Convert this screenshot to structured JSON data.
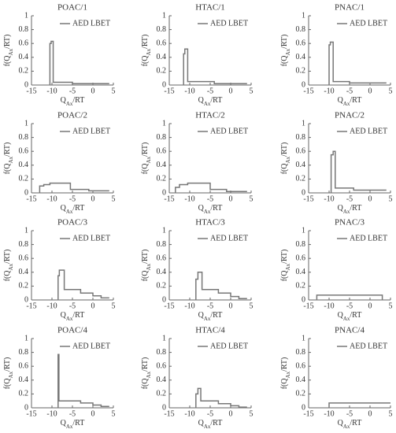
{
  "chart_data": [
    {
      "type": "line",
      "title": "POAC/1",
      "xlabel": {
        "pre": "Q",
        "sub": "Ax",
        "post": "/RT"
      },
      "ylabel": {
        "pre": "f(Q",
        "sub": "Ax",
        "post": "/RT)"
      },
      "x": [
        -10.5,
        -10.5,
        -10.2,
        -10.2,
        -9.7,
        -9.7,
        -5,
        -5,
        4
      ],
      "series": [
        {
          "name": "AED LBET",
          "color": "#777777",
          "values": [
            0,
            0.6,
            0.6,
            0.63,
            0.63,
            0.04,
            0.04,
            0.02,
            0.02
          ]
        }
      ],
      "xlim": [
        -15,
        5
      ],
      "ylim": [
        0,
        1
      ],
      "xticks": [
        -15,
        -10,
        -5,
        0,
        5
      ],
      "yticks": [
        0,
        0.2,
        0.4,
        0.6,
        0.8,
        1
      ],
      "legend": "upper right"
    },
    {
      "type": "line",
      "title": "HTAC/1",
      "xlabel": {
        "pre": "Q",
        "sub": "Ax",
        "post": "/RT"
      },
      "ylabel": {
        "pre": "f(Q",
        "sub": "Ax",
        "post": "/RT)"
      },
      "x": [
        -11.5,
        -11.5,
        -11.2,
        -11.2,
        -10.5,
        -10.5,
        -4,
        -4,
        4
      ],
      "series": [
        {
          "name": "AED LBET",
          "color": "#777777",
          "values": [
            0,
            0.45,
            0.45,
            0.52,
            0.52,
            0.05,
            0.05,
            0.02,
            0.02
          ]
        }
      ],
      "xlim": [
        -15,
        5
      ],
      "ylim": [
        0,
        1
      ],
      "xticks": [
        -15,
        -10,
        -5,
        0,
        5
      ],
      "yticks": [
        0,
        0.2,
        0.4,
        0.6,
        0.8,
        1
      ],
      "legend": "upper right"
    },
    {
      "type": "line",
      "title": "PNAC/1",
      "xlabel": {
        "pre": "Q",
        "sub": "Ax",
        "post": "/RT"
      },
      "ylabel": {
        "pre": "f(Q",
        "sub": "Ax",
        "post": "/RT)"
      },
      "x": [
        -10,
        -10,
        -9.7,
        -9.7,
        -9,
        -9,
        -5,
        -5,
        4
      ],
      "series": [
        {
          "name": "AED LBET",
          "color": "#777777",
          "values": [
            0,
            0.58,
            0.58,
            0.62,
            0.62,
            0.05,
            0.05,
            0.03,
            0.03
          ]
        }
      ],
      "xlim": [
        -15,
        5
      ],
      "ylim": [
        0,
        1
      ],
      "xticks": [
        -15,
        -10,
        -5,
        0,
        5
      ],
      "yticks": [
        0,
        0.2,
        0.4,
        0.6,
        0.8,
        1
      ],
      "legend": "upper right"
    },
    {
      "type": "line",
      "title": "POAC/2",
      "xlabel": {
        "pre": "Q",
        "sub": "Ax",
        "post": "/RT"
      },
      "ylabel": {
        "pre": "f(Q",
        "sub": "Ax",
        "post": "/RT)"
      },
      "x": [
        -13,
        -13,
        -12,
        -12,
        -10.5,
        -10.5,
        -5.5,
        -5.5,
        -1,
        -1,
        4
      ],
      "series": [
        {
          "name": "AED LBET",
          "color": "#777777",
          "values": [
            0,
            0.1,
            0.1,
            0.12,
            0.12,
            0.14,
            0.14,
            0.05,
            0.05,
            0.03,
            0.03
          ]
        }
      ],
      "xlim": [
        -15,
        5
      ],
      "ylim": [
        0,
        1
      ],
      "xticks": [
        -15,
        -10,
        -5,
        0,
        5
      ],
      "yticks": [
        0,
        0.2,
        0.4,
        0.6,
        0.8,
        1
      ],
      "legend": "upper right"
    },
    {
      "type": "line",
      "title": "HTAC/2",
      "xlabel": {
        "pre": "Q",
        "sub": "Ax",
        "post": "/RT"
      },
      "ylabel": {
        "pre": "f(Q",
        "sub": "Ax",
        "post": "/RT)"
      },
      "x": [
        -13.5,
        -13.5,
        -12.5,
        -12.5,
        -10.5,
        -10.5,
        -5,
        -5,
        -1,
        -1,
        4
      ],
      "series": [
        {
          "name": "AED LBET",
          "color": "#777777",
          "values": [
            0,
            0.08,
            0.08,
            0.12,
            0.12,
            0.14,
            0.14,
            0.05,
            0.05,
            0.02,
            0.02
          ]
        }
      ],
      "xlim": [
        -15,
        5
      ],
      "ylim": [
        0,
        1
      ],
      "xticks": [
        -15,
        -10,
        -5,
        0,
        5
      ],
      "yticks": [
        0,
        0.2,
        0.4,
        0.6,
        0.8,
        1
      ],
      "legend": "upper right"
    },
    {
      "type": "line",
      "title": "PNAC/2",
      "xlabel": {
        "pre": "Q",
        "sub": "Ax",
        "post": "/RT"
      },
      "ylabel": {
        "pre": "f(Q",
        "sub": "Ax",
        "post": "/RT)"
      },
      "x": [
        -9.5,
        -9.5,
        -9,
        -9,
        -8.5,
        -8.5,
        -4,
        -4,
        4
      ],
      "series": [
        {
          "name": "AED LBET",
          "color": "#777777",
          "values": [
            0,
            0.55,
            0.55,
            0.6,
            0.6,
            0.07,
            0.07,
            0.04,
            0.04
          ]
        }
      ],
      "xlim": [
        -15,
        5
      ],
      "ylim": [
        0,
        1
      ],
      "xticks": [
        -15,
        -10,
        -5,
        0,
        5
      ],
      "yticks": [
        0,
        0.2,
        0.4,
        0.6,
        0.8,
        1
      ],
      "legend": "upper right"
    },
    {
      "type": "line",
      "title": "POAC/3",
      "xlabel": {
        "pre": "Q",
        "sub": "Ax",
        "post": "/RT"
      },
      "ylabel": {
        "pre": "f(Q",
        "sub": "Ax",
        "post": "/RT)"
      },
      "x": [
        -8.5,
        -8.5,
        -8.2,
        -8.2,
        -7,
        -7,
        -3,
        -3,
        0,
        0,
        2,
        2,
        4
      ],
      "series": [
        {
          "name": "AED LBET",
          "color": "#777777",
          "values": [
            0,
            0.35,
            0.35,
            0.43,
            0.43,
            0.15,
            0.15,
            0.1,
            0.1,
            0.06,
            0.06,
            0.03,
            0.03
          ]
        }
      ],
      "xlim": [
        -15,
        5
      ],
      "ylim": [
        0,
        1
      ],
      "xticks": [
        -15,
        -10,
        -5,
        0,
        5
      ],
      "yticks": [
        0,
        0.2,
        0.4,
        0.6,
        0.8,
        1
      ],
      "legend": "upper right"
    },
    {
      "type": "line",
      "title": "HTAC/3",
      "xlabel": {
        "pre": "Q",
        "sub": "Ax",
        "post": "/RT"
      },
      "ylabel": {
        "pre": "f(Q",
        "sub": "Ax",
        "post": "/RT)"
      },
      "x": [
        -8.5,
        -8.5,
        -8,
        -8,
        -7,
        -7,
        -3,
        -3,
        0,
        0,
        2,
        2,
        4
      ],
      "series": [
        {
          "name": "AED LBET",
          "color": "#777777",
          "values": [
            0,
            0.3,
            0.3,
            0.4,
            0.4,
            0.15,
            0.15,
            0.1,
            0.1,
            0.05,
            0.05,
            0.02,
            0.02
          ]
        }
      ],
      "xlim": [
        -15,
        5
      ],
      "ylim": [
        0,
        1
      ],
      "xticks": [
        -15,
        -10,
        -5,
        0,
        5
      ],
      "yticks": [
        0,
        0.2,
        0.4,
        0.6,
        0.8,
        1
      ],
      "legend": "upper right"
    },
    {
      "type": "line",
      "title": "PNAC/3",
      "xlabel": {
        "pre": "Q",
        "sub": "Ax",
        "post": "/RT"
      },
      "ylabel": {
        "pre": "f(Q",
        "sub": "Ax",
        "post": "/RT)"
      },
      "x": [
        -13,
        -13,
        3,
        3
      ],
      "series": [
        {
          "name": "AED LBET",
          "color": "#777777",
          "values": [
            0,
            0.07,
            0.07,
            0
          ]
        }
      ],
      "xlim": [
        -15,
        5
      ],
      "ylim": [
        0,
        1
      ],
      "xticks": [
        -15,
        -10,
        -5,
        0,
        5
      ],
      "yticks": [
        0,
        0.2,
        0.4,
        0.6,
        0.8,
        1
      ],
      "legend": "upper right"
    },
    {
      "type": "line",
      "title": "POAC/4",
      "xlabel": {
        "pre": "Q",
        "sub": "Ax",
        "post": "/RT"
      },
      "ylabel": {
        "pre": "f(Q",
        "sub": "Ax",
        "post": "/RT)"
      },
      "x": [
        -8.5,
        -8.5,
        -8.3,
        -8.3,
        -3,
        -3,
        0,
        0,
        2,
        2,
        4
      ],
      "series": [
        {
          "name": "AED LBET",
          "color": "#777777",
          "values": [
            0,
            0.77,
            0.77,
            0.1,
            0.1,
            0.07,
            0.07,
            0.04,
            0.04,
            0.02,
            0.02
          ]
        }
      ],
      "xlim": [
        -15,
        5
      ],
      "ylim": [
        0,
        1
      ],
      "xticks": [
        -15,
        -10,
        -5,
        0,
        5
      ],
      "yticks": [
        0,
        0.2,
        0.4,
        0.6,
        0.8,
        1
      ],
      "legend": "upper right"
    },
    {
      "type": "line",
      "title": "HTAC/4",
      "xlabel": {
        "pre": "Q",
        "sub": "Ax",
        "post": "/RT"
      },
      "ylabel": {
        "pre": "f(Q",
        "sub": "Ax",
        "post": "/RT)"
      },
      "x": [
        -8.5,
        -8.5,
        -8,
        -8,
        -7.3,
        -7.3,
        -3,
        -3,
        0,
        0,
        2,
        2,
        4
      ],
      "series": [
        {
          "name": "AED LBET",
          "color": "#777777",
          "values": [
            0,
            0.2,
            0.2,
            0.28,
            0.28,
            0.1,
            0.1,
            0.06,
            0.06,
            0.03,
            0.03,
            0.01,
            0.01
          ]
        }
      ],
      "xlim": [
        -15,
        5
      ],
      "ylim": [
        0,
        1
      ],
      "xticks": [
        -15,
        -10,
        -5,
        0,
        5
      ],
      "yticks": [
        0,
        0.2,
        0.4,
        0.6,
        0.8,
        1
      ],
      "legend": "upper right"
    },
    {
      "type": "line",
      "title": "PNAC/4",
      "xlabel": {
        "pre": "Q",
        "sub": "Ax",
        "post": "/RT"
      },
      "ylabel": {
        "pre": "f(Q",
        "sub": "Ax",
        "post": "/RT)"
      },
      "x": [
        -10,
        -10,
        5
      ],
      "series": [
        {
          "name": "AED LBET",
          "color": "#777777",
          "values": [
            0,
            0.07,
            0.07
          ]
        }
      ],
      "xlim": [
        -15,
        5
      ],
      "ylim": [
        0,
        1
      ],
      "xticks": [
        -15,
        -10,
        -5,
        0,
        5
      ],
      "yticks": [
        0,
        0.2,
        0.4,
        0.6,
        0.8,
        1
      ],
      "legend": "upper right"
    }
  ]
}
